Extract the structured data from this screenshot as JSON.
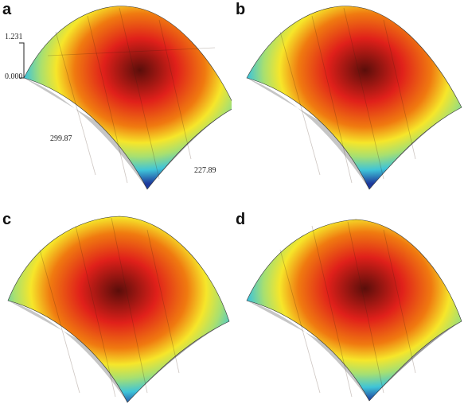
{
  "panels": [
    {
      "label": "a",
      "annotations": {
        "z_max": "1.231",
        "z_min": "0.000",
        "x_extent": "299.87",
        "y_extent": "227.89"
      }
    },
    {
      "label": "b"
    },
    {
      "label": "c"
    },
    {
      "label": "d"
    }
  ],
  "colors": {
    "peak_dark": "#5a0e0a",
    "high": "#e0201a",
    "mid_high": "#f07a10",
    "mid": "#f6e62a",
    "mid_low": "#a8e070",
    "low": "#3fc4d8",
    "lowest": "#1d3a9c",
    "base_gray": "#c6c6c6",
    "base_shadow": "#9a9a9a"
  }
}
